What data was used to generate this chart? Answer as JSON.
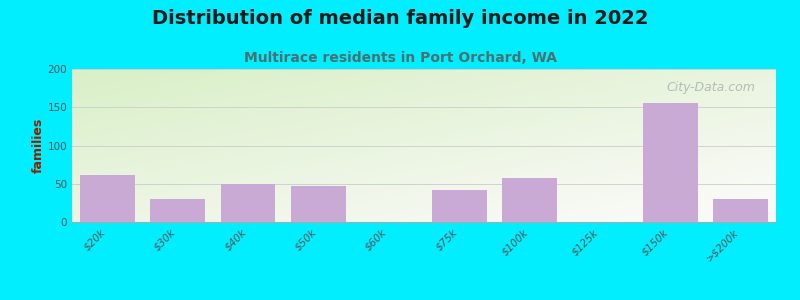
{
  "title": "Distribution of median family income in 2022",
  "subtitle": "Multirace residents in Port Orchard, WA",
  "ylabel": "families",
  "categories": [
    "$20k",
    "$30k",
    "$40k",
    "$50k",
    "$60k",
    "$75k",
    "$100k",
    "$125k",
    "$150k",
    ">$200k"
  ],
  "values": [
    62,
    30,
    50,
    47,
    0,
    42,
    57,
    0,
    155,
    30
  ],
  "bar_color": "#c9aad4",
  "background_color": "#00eeff",
  "plot_bg_color_topleft": "#d8eec8",
  "plot_bg_color_right": "#f5f5f0",
  "plot_bg_color_bottom": "#ffffff",
  "title_color": "#1a1a1a",
  "subtitle_color": "#4a7070",
  "ylabel_color": "#8b2200",
  "tick_color": "#555555",
  "grid_color": "#cccccc",
  "watermark_text": "City-Data.com",
  "watermark_color": "#b0b0b0",
  "title_fontsize": 14,
  "subtitle_fontsize": 10,
  "ylabel_fontsize": 9,
  "tick_fontsize": 7.5,
  "watermark_fontsize": 9,
  "ylim": [
    0,
    200
  ],
  "yticks": [
    0,
    50,
    100,
    150,
    200
  ]
}
